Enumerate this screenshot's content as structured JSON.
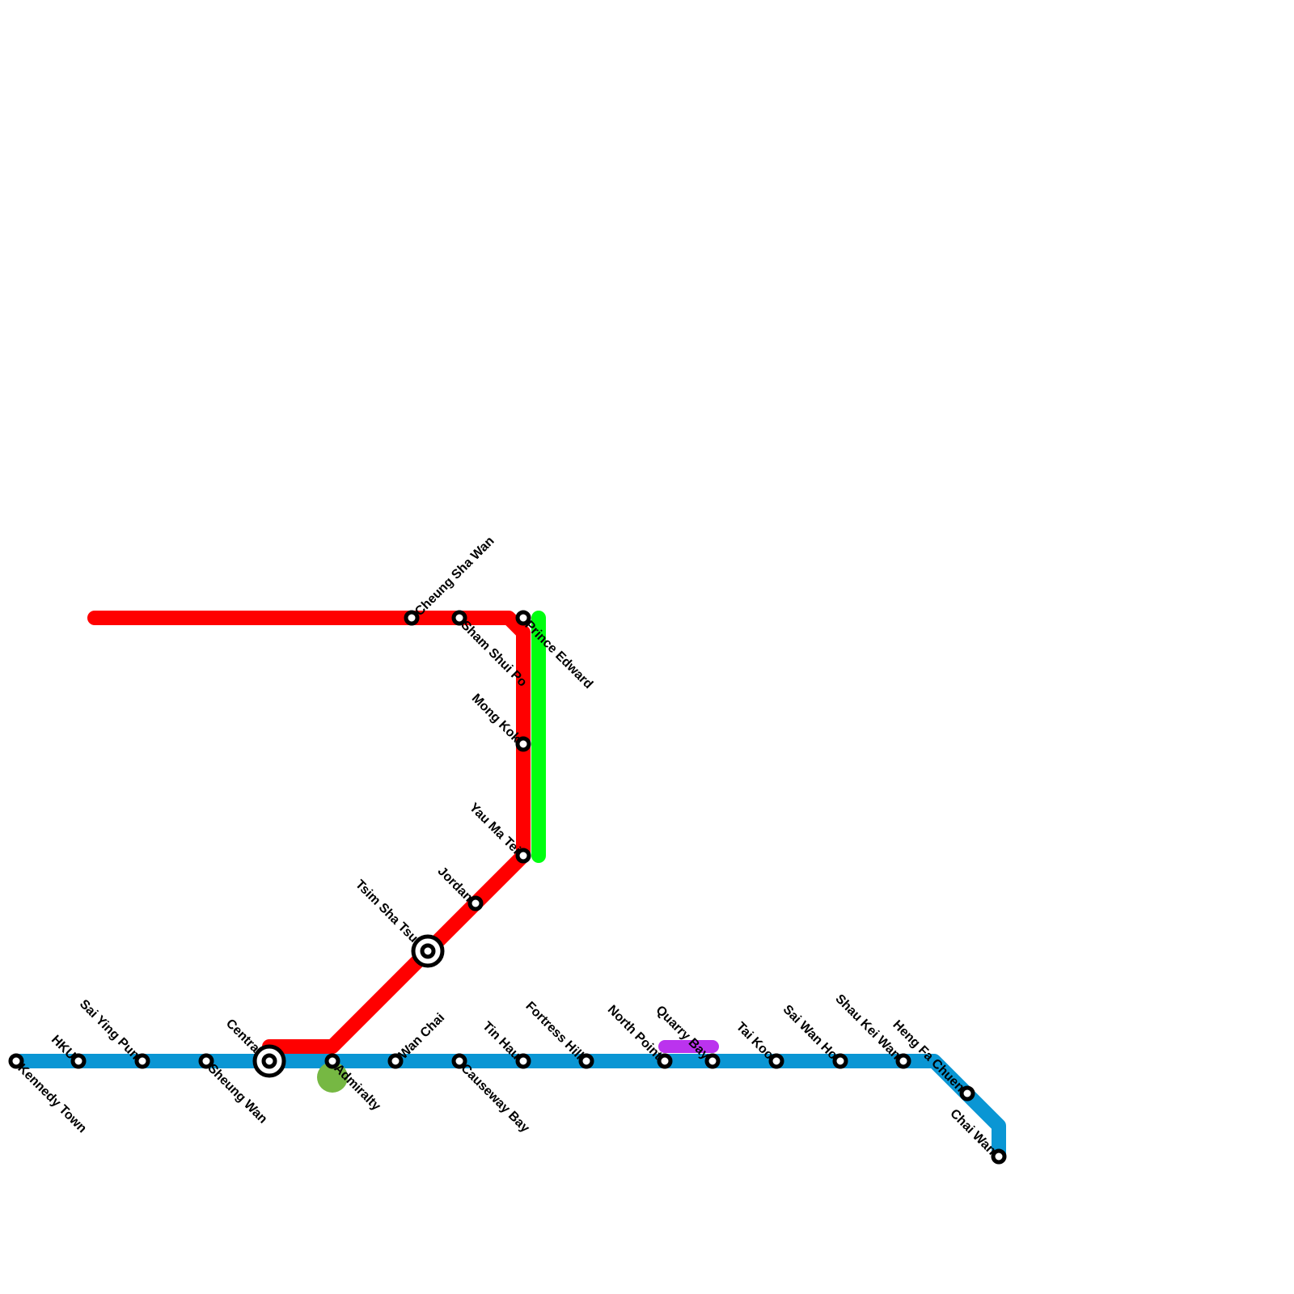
{
  "lines": [
    {
      "id": "blue",
      "color": "#0a96d4"
    },
    {
      "id": "red",
      "color": "#ff0000"
    },
    {
      "id": "green",
      "color": "#00ff10"
    },
    {
      "id": "purple",
      "color": "#bb33ee"
    }
  ],
  "stations": [
    {
      "name": "Kennedy Town",
      "line": "blue",
      "interchange": false
    },
    {
      "name": "HKU",
      "line": "blue",
      "interchange": false
    },
    {
      "name": "Sai Ying Pun",
      "line": "blue",
      "interchange": false
    },
    {
      "name": "Sheung Wan",
      "line": "blue",
      "interchange": false
    },
    {
      "name": "Central",
      "line": "blue",
      "interchange": true
    },
    {
      "name": "Admiralty",
      "line": "blue",
      "interchange": false
    },
    {
      "name": "Wan Chai",
      "line": "blue",
      "interchange": false
    },
    {
      "name": "Causeway Bay",
      "line": "blue",
      "interchange": false
    },
    {
      "name": "Tin Hau",
      "line": "blue",
      "interchange": false
    },
    {
      "name": "Fortress Hill",
      "line": "blue",
      "interchange": false
    },
    {
      "name": "North Point",
      "line": "blue",
      "interchange": false
    },
    {
      "name": "Quarry Bay",
      "line": "blue",
      "interchange": false
    },
    {
      "name": "Tai Koo",
      "line": "blue",
      "interchange": false
    },
    {
      "name": "Sai Wan Ho",
      "line": "blue",
      "interchange": false
    },
    {
      "name": "Shau Kei Wan",
      "line": "blue",
      "interchange": false
    },
    {
      "name": "Heng Fa Chuen",
      "line": "blue",
      "interchange": false
    },
    {
      "name": "Chai Wan",
      "line": "blue",
      "interchange": false
    },
    {
      "name": "Tsim Sha Tsui",
      "line": "red",
      "interchange": true
    },
    {
      "name": "Jordan",
      "line": "red",
      "interchange": false
    },
    {
      "name": "Yau Ma Tei",
      "line": "red",
      "interchange": false
    },
    {
      "name": "Mong Kok",
      "line": "red",
      "interchange": false
    },
    {
      "name": "Prince Edward",
      "line": "red",
      "interchange": false
    },
    {
      "name": "Sham Shui Po",
      "line": "red",
      "interchange": false
    },
    {
      "name": "Cheung Sha Wan",
      "line": "red",
      "interchange": false
    }
  ],
  "marker_color": "#76b843"
}
